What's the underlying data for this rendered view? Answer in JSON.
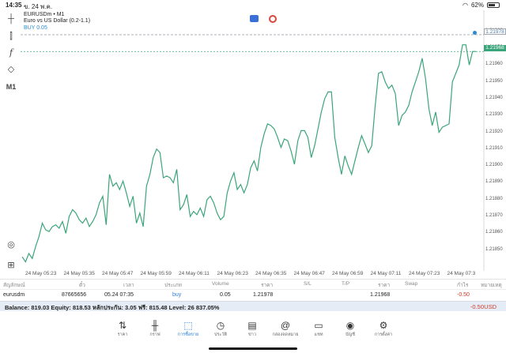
{
  "status_bar": {
    "time": "14:35",
    "date": "ข. 24 พ.ค.",
    "battery": "62%"
  },
  "chart": {
    "symbol": "EURUSDm • M1",
    "description": "Euro vs US Dollar (0.2-1.1)",
    "buy_label": "BUY 0.05",
    "price_axis_labels": [
      "1.21980",
      "1.21970",
      "1.21960",
      "1.21950",
      "1.21940",
      "1.21930",
      "1.21920",
      "1.21910",
      "1.21900",
      "1.21890",
      "1.21880",
      "1.21870",
      "1.21860",
      "1.21850"
    ],
    "buy_price_tag": "1.21978",
    "current_price_tag": "1.21968",
    "time_labels": [
      "24 May 05:23",
      "24 May 05:35",
      "24 May 05:47",
      "24 May 05:59",
      "24 May 06:11",
      "24 May 06:23",
      "24 May 06:35",
      "24 May 06:47",
      "24 May 06:59",
      "24 May 07:11",
      "24 May 07:23",
      "24 May 07:3"
    ],
    "line_color": "#3aa57a",
    "buy_line_color": "#9fa6ad",
    "current_line_color": "#3aa57a"
  },
  "chart_data": {
    "type": "line",
    "series": [
      {
        "values": [
          1.21846,
          1.21843,
          1.21848,
          1.21845,
          1.21852,
          1.21858,
          1.21866,
          1.21862,
          1.21861,
          1.21864,
          1.21865,
          1.21863,
          1.21867,
          1.2186,
          1.2187,
          1.21874,
          1.21872,
          1.21868,
          1.21866,
          1.21869,
          1.21864,
          1.21867,
          1.21871,
          1.21878,
          1.21882,
          1.21865,
          1.21895,
          1.21888,
          1.2189,
          1.21886,
          1.21891,
          1.21884,
          1.21876,
          1.21882,
          1.21866,
          1.21872,
          1.21864,
          1.21888,
          1.21895,
          1.21905,
          1.2191,
          1.21908,
          1.21893,
          1.21894,
          1.21893,
          1.2189,
          1.21898,
          1.21874,
          1.21877,
          1.21883,
          1.2187,
          1.21873,
          1.21871,
          1.21875,
          1.2187,
          1.2188,
          1.21882,
          1.21878,
          1.21872,
          1.21868,
          1.2187,
          1.21884,
          1.21891,
          1.21896,
          1.21886,
          1.21889,
          1.21884,
          1.21889,
          1.21899,
          1.21903,
          1.21897,
          1.21911,
          1.21919,
          1.21925,
          1.21924,
          1.21922,
          1.21917,
          1.21911,
          1.21916,
          1.21915,
          1.21909,
          1.21901,
          1.21915,
          1.21921,
          1.21921,
          1.21917,
          1.21905,
          1.21912,
          1.21922,
          1.21932,
          1.2194,
          1.21944,
          1.21944,
          1.21917,
          1.21905,
          1.21895,
          1.21906,
          1.219,
          1.21895,
          1.21903,
          1.21911,
          1.21918,
          1.21913,
          1.21908,
          1.21912,
          1.21935,
          1.21955,
          1.21956,
          1.2195,
          1.21946,
          1.21948,
          1.21943,
          1.21924,
          1.2193,
          1.21932,
          1.21936,
          1.21944,
          1.2195,
          1.21956,
          1.21964,
          1.21952,
          1.21934,
          1.21924,
          1.21932,
          1.2192,
          1.21923,
          1.21924,
          1.21925,
          1.2195,
          1.21955,
          1.2196,
          1.21972,
          1.21972,
          1.2196,
          1.21968,
          1.21968
        ]
      }
    ],
    "ylim": [
      1.2184,
      1.21985
    ],
    "buy_price": 1.21978,
    "current_price": 1.21968
  },
  "positions_table": {
    "headers": [
      "สัญลักษณ์",
      "ตั๋ว",
      "เวลา",
      "ประเภท",
      "Volume",
      "ราคา",
      "S/L",
      "T/P",
      "ราคา",
      "Swap",
      "กำไร",
      "หมายเหตุ"
    ],
    "row": {
      "symbol": "eurusdm",
      "ticket": "87665656",
      "time": "05.24 07:35",
      "type": "buy",
      "volume": "0.05",
      "open_price": "1.21978",
      "current_price": "1.21968",
      "profit": "-0.50"
    }
  },
  "balance": {
    "text": "Balance: 819.03 Equity: 818.53 หลักประกัน: 3.05 ฟรี: 815.48 Level: 26 837.05%",
    "profit": "-0.50",
    "currency": "USD"
  },
  "tabs": [
    {
      "label": "ราคา",
      "icon": "updown-arrows-icon"
    },
    {
      "label": "กราฟ",
      "icon": "candles-icon"
    },
    {
      "label": "การซื้อขาย",
      "icon": "trade-chart-icon"
    },
    {
      "label": "ประวัติ",
      "icon": "history-clock-icon"
    },
    {
      "label": "ข่าว",
      "icon": "news-icon"
    },
    {
      "label": "กล่องจดหมาย",
      "icon": "at-mail-icon"
    },
    {
      "label": "แชท",
      "icon": "chat-icon"
    },
    {
      "label": "บัญชี",
      "icon": "account-icon"
    },
    {
      "label": "การตั้งค่า",
      "icon": "gear-icon"
    }
  ]
}
